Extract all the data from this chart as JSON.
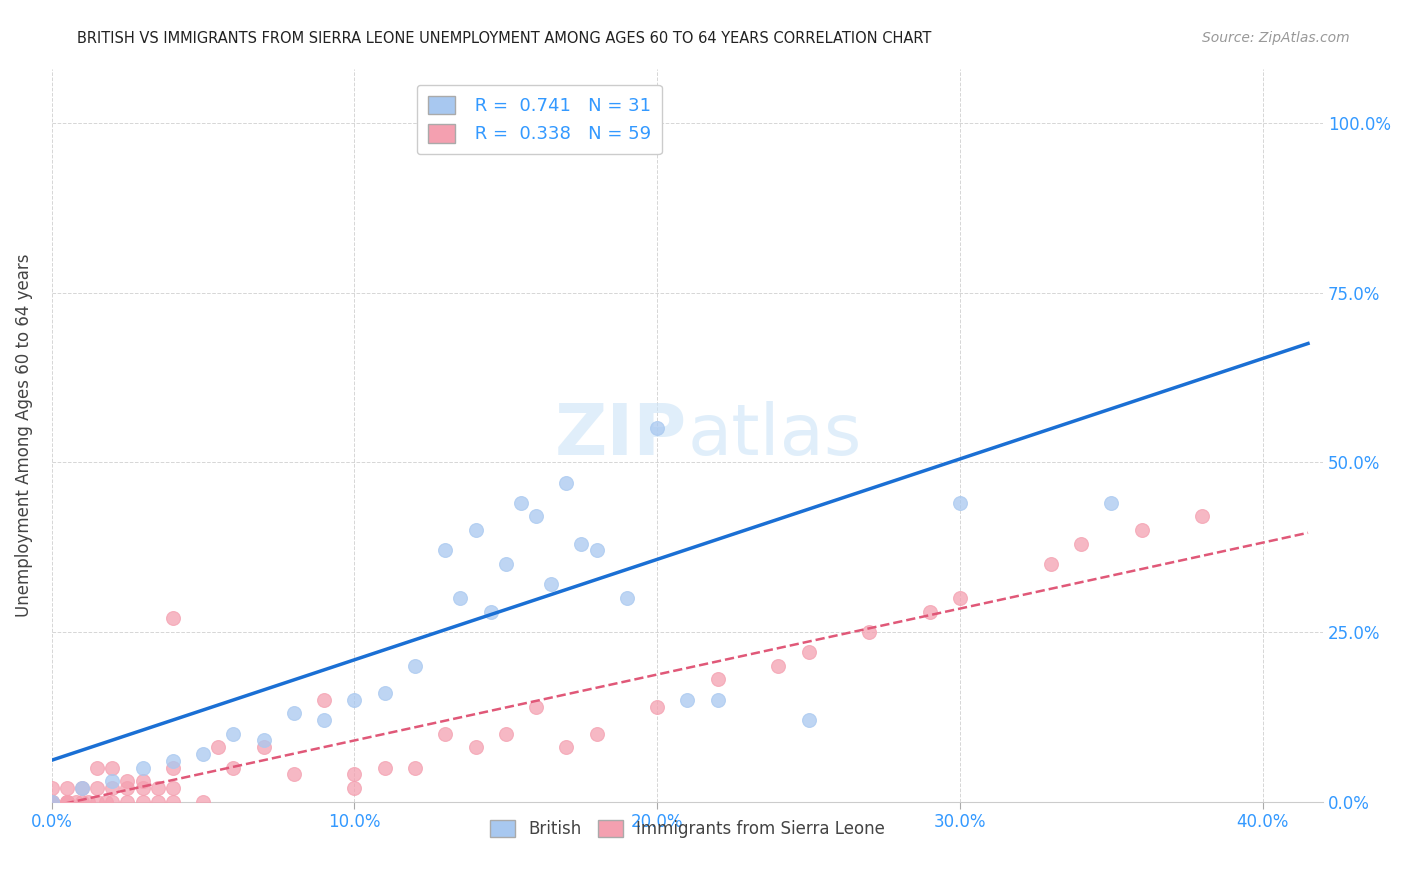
{
  "title": "BRITISH VS IMMIGRANTS FROM SIERRA LEONE UNEMPLOYMENT AMONG AGES 60 TO 64 YEARS CORRELATION CHART",
  "source": "Source: ZipAtlas.com",
  "ylabel": "Unemployment Among Ages 60 to 64 years",
  "xmin": 0.0,
  "xmax": 0.42,
  "ymin": 0.0,
  "ymax": 1.08,
  "xticks": [
    0.0,
    0.1,
    0.2,
    0.3,
    0.4
  ],
  "xtick_labels": [
    "0.0%",
    "10.0%",
    "20.0%",
    "30.0%",
    "40.0%"
  ],
  "yticks": [
    0.0,
    0.25,
    0.5,
    0.75,
    1.0
  ],
  "ytick_labels": [
    "0.0%",
    "25.0%",
    "50.0%",
    "75.0%",
    "100.0%"
  ],
  "british_R": 0.741,
  "british_N": 31,
  "sl_R": 0.338,
  "sl_N": 59,
  "british_color": "#a8c8f0",
  "sl_color": "#f4a0b0",
  "british_line_color": "#1a6fd4",
  "sl_line_color": "#e05878",
  "british_x": [
    0.0,
    0.01,
    0.02,
    0.03,
    0.04,
    0.05,
    0.06,
    0.07,
    0.08,
    0.09,
    0.1,
    0.11,
    0.12,
    0.13,
    0.135,
    0.14,
    0.145,
    0.15,
    0.155,
    0.16,
    0.165,
    0.17,
    0.175,
    0.18,
    0.19,
    0.2,
    0.21,
    0.22,
    0.25,
    0.3,
    0.35
  ],
  "british_y": [
    0.0,
    0.02,
    0.03,
    0.05,
    0.06,
    0.07,
    0.1,
    0.09,
    0.13,
    0.12,
    0.15,
    0.16,
    0.2,
    0.37,
    0.3,
    0.4,
    0.28,
    0.35,
    0.44,
    0.42,
    0.32,
    0.47,
    0.38,
    0.37,
    0.3,
    0.55,
    0.15,
    0.15,
    0.12,
    0.44,
    0.44
  ],
  "british_outlier_x": [
    0.175
  ],
  "british_outlier_y": [
    1.0
  ],
  "sl_x": [
    0.0,
    0.0,
    0.0,
    0.0,
    0.0,
    0.0,
    0.005,
    0.005,
    0.005,
    0.005,
    0.008,
    0.01,
    0.01,
    0.012,
    0.015,
    0.015,
    0.015,
    0.018,
    0.02,
    0.02,
    0.02,
    0.025,
    0.025,
    0.025,
    0.03,
    0.03,
    0.03,
    0.035,
    0.035,
    0.04,
    0.04,
    0.04,
    0.05,
    0.055,
    0.06,
    0.07,
    0.08,
    0.09,
    0.1,
    0.1,
    0.11,
    0.12,
    0.13,
    0.14,
    0.15,
    0.16,
    0.17,
    0.18,
    0.2,
    0.22,
    0.24,
    0.25,
    0.27,
    0.29,
    0.3,
    0.33,
    0.34,
    0.36,
    0.38
  ],
  "sl_y": [
    0.0,
    0.0,
    0.0,
    0.0,
    0.0,
    0.02,
    0.0,
    0.0,
    0.0,
    0.02,
    0.0,
    0.0,
    0.02,
    0.0,
    0.0,
    0.02,
    0.05,
    0.0,
    0.0,
    0.02,
    0.05,
    0.0,
    0.02,
    0.03,
    0.0,
    0.02,
    0.03,
    0.0,
    0.02,
    0.0,
    0.02,
    0.05,
    0.0,
    0.08,
    0.05,
    0.08,
    0.04,
    0.15,
    0.02,
    0.04,
    0.05,
    0.05,
    0.1,
    0.08,
    0.1,
    0.14,
    0.08,
    0.1,
    0.14,
    0.18,
    0.2,
    0.22,
    0.25,
    0.28,
    0.3,
    0.35,
    0.38,
    0.4,
    0.42
  ],
  "sl_outlier_x": [
    0.04
  ],
  "sl_outlier_y": [
    0.27
  ]
}
